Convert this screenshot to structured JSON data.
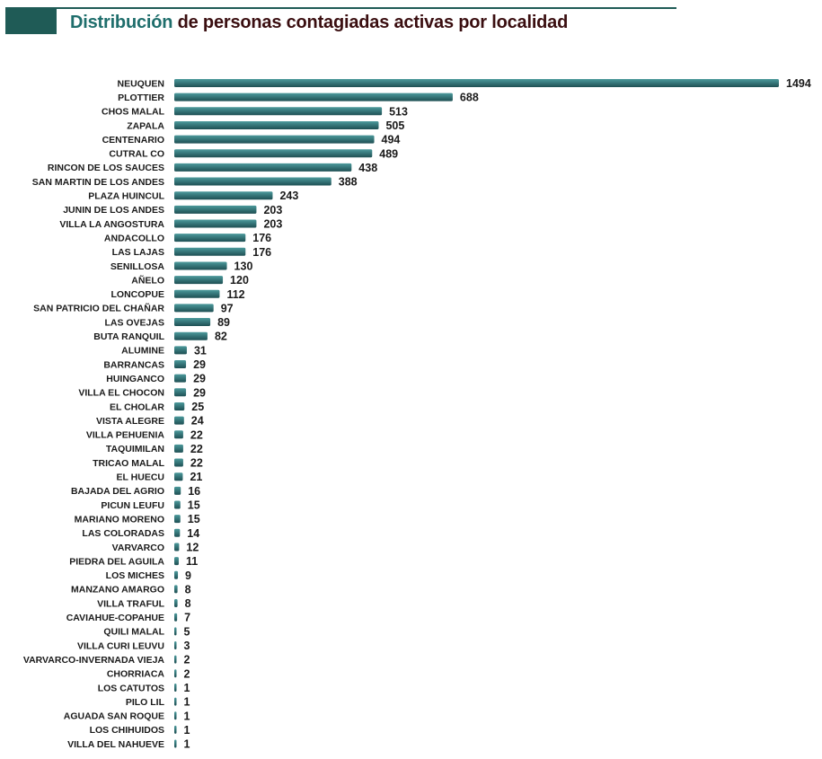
{
  "title": {
    "accent": "Distribución",
    "rest": "de personas contagiadas activas por localidad"
  },
  "colors": {
    "header": "#1f5b56",
    "bar_light": "#4c9a9c",
    "bar_dark": "#1e4f53",
    "title_accent": "#1f6e6c",
    "title_text": "#3a0e10"
  },
  "chart_data": {
    "type": "bar",
    "orientation": "horizontal",
    "title": "Distribución de personas contagiadas activas por localidad",
    "xlabel": "",
    "ylabel": "",
    "grid": false,
    "legend": "none",
    "xlim": [
      0,
      1494
    ],
    "categories": [
      "NEUQUEN",
      "PLOTTIER",
      "CHOS MALAL",
      "ZAPALA",
      "CENTENARIO",
      "CUTRAL CO",
      "RINCON DE LOS SAUCES",
      "SAN MARTIN DE LOS ANDES",
      "PLAZA HUINCUL",
      "JUNIN DE LOS ANDES",
      "VILLA LA ANGOSTURA",
      "ANDACOLLO",
      "LAS LAJAS",
      "SENILLOSA",
      "AÑELO",
      "LONCOPUE",
      "SAN PATRICIO DEL CHAÑAR",
      "LAS OVEJAS",
      "BUTA RANQUIL",
      "ALUMINE",
      "BARRANCAS",
      "HUINGANCO",
      "VILLA EL CHOCON",
      "EL CHOLAR",
      "VISTA ALEGRE",
      "VILLA PEHUENIA",
      "TAQUIMILAN",
      "TRICAO MALAL",
      "EL HUECU",
      "BAJADA DEL AGRIO",
      "PICUN LEUFU",
      "MARIANO MORENO",
      "LAS COLORADAS",
      "VARVARCO",
      "PIEDRA DEL AGUILA",
      "LOS MICHES",
      "MANZANO AMARGO",
      "VILLA TRAFUL",
      "CAVIAHUE-COPAHUE",
      "QUILI MALAL",
      "VILLA CURI LEUVU",
      "VARVARCO-INVERNADA VIEJA",
      "CHORRIACA",
      "LOS CATUTOS",
      "PILO LIL",
      "AGUADA SAN ROQUE",
      "LOS CHIHUIDOS",
      "VILLA DEL NAHUEVE"
    ],
    "values": [
      1494,
      688,
      513,
      505,
      494,
      489,
      438,
      388,
      243,
      203,
      203,
      176,
      176,
      130,
      120,
      112,
      97,
      89,
      82,
      31,
      29,
      29,
      29,
      25,
      24,
      22,
      22,
      22,
      21,
      16,
      15,
      15,
      14,
      12,
      11,
      9,
      8,
      8,
      7,
      5,
      3,
      2,
      2,
      1,
      1,
      1,
      1,
      1
    ]
  }
}
